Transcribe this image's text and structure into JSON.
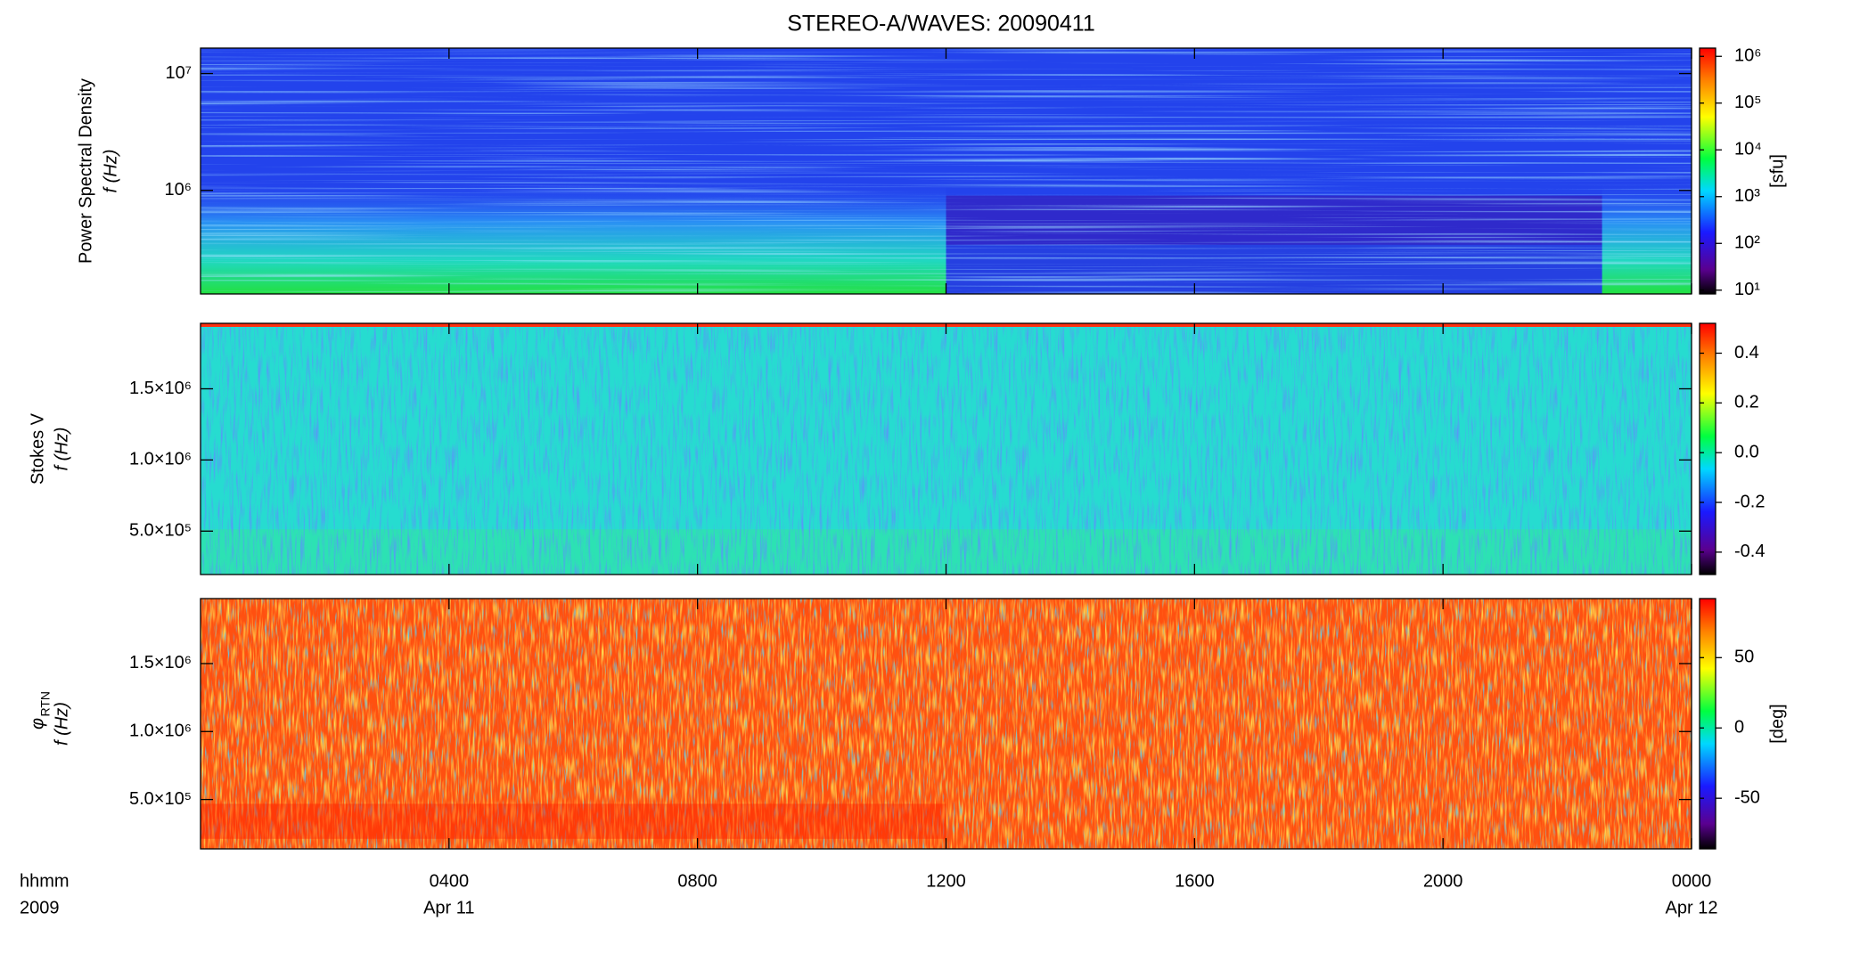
{
  "title": "STEREO-A/WAVES: 20090411",
  "x_axis": {
    "xlim": [
      0,
      24
    ],
    "xticks": [
      {
        "value": 4,
        "label": "0400"
      },
      {
        "value": 8,
        "label": "0800"
      },
      {
        "value": 12,
        "label": "1200"
      },
      {
        "value": 16,
        "label": "1600"
      },
      {
        "value": 20,
        "label": "2000"
      },
      {
        "value": 24,
        "label": "0000"
      }
    ],
    "date_ticks": [
      {
        "value": 4,
        "label": "Apr 11"
      },
      {
        "value": 24,
        "label": "Apr 12"
      }
    ],
    "x_label": [
      "hhmm",
      "2009"
    ]
  },
  "chart_data": [
    {
      "type": "heatmap",
      "y_label": [
        "Power Spectral Density",
        "f (Hz)"
      ],
      "ylog": true,
      "ylim": [
        130000,
        16500000
      ],
      "yticks": [
        {
          "value": 1000000,
          "label": "10⁶"
        },
        {
          "value": 10000000,
          "label": "10⁷"
        }
      ],
      "colorbar_label": "[sfu]",
      "clog": true,
      "clim": [
        8.3,
        1500000
      ],
      "cticks": [
        {
          "value": 10,
          "label": "10¹"
        },
        {
          "value": 100,
          "label": "10²"
        },
        {
          "value": 1000,
          "label": "10³"
        },
        {
          "value": 10000,
          "label": "10⁴"
        },
        {
          "value": 100000,
          "label": "10⁵"
        },
        {
          "value": 1000000,
          "label": "10⁶"
        }
      ]
    },
    {
      "type": "heatmap",
      "y_label": [
        "Stokes V",
        "f (Hz)"
      ],
      "ylog": false,
      "ylim": [
        195000,
        1960000
      ],
      "yticks": [
        {
          "value": 500000,
          "label": "5.0×10⁵"
        },
        {
          "value": 1000000,
          "label": "1.0×10⁶"
        },
        {
          "value": 1500000,
          "label": "1.5×10⁶"
        }
      ],
      "clog": false,
      "clim": [
        -0.49,
        0.52
      ],
      "cticks": [
        -0.4,
        -0.2,
        {
          "value": 0,
          "label": "0.0"
        },
        0.2,
        0.4
      ]
    },
    {
      "type": "heatmap",
      "y_label": [
        "φ",
        "f (Hz)"
      ],
      "y_label_subscript": "RTN",
      "ylog": false,
      "ylim": [
        137000,
        1978000
      ],
      "yticks": [
        {
          "value": 500000,
          "label": "5.0×10⁵"
        },
        {
          "value": 1000000,
          "label": "1.0×10⁶"
        },
        {
          "value": 1500000,
          "label": "1.5×10⁶"
        }
      ],
      "colorbar_label": "[deg]",
      "clog": false,
      "clim": [
        -86,
        92
      ],
      "cticks": [
        -50,
        0,
        50
      ]
    }
  ]
}
